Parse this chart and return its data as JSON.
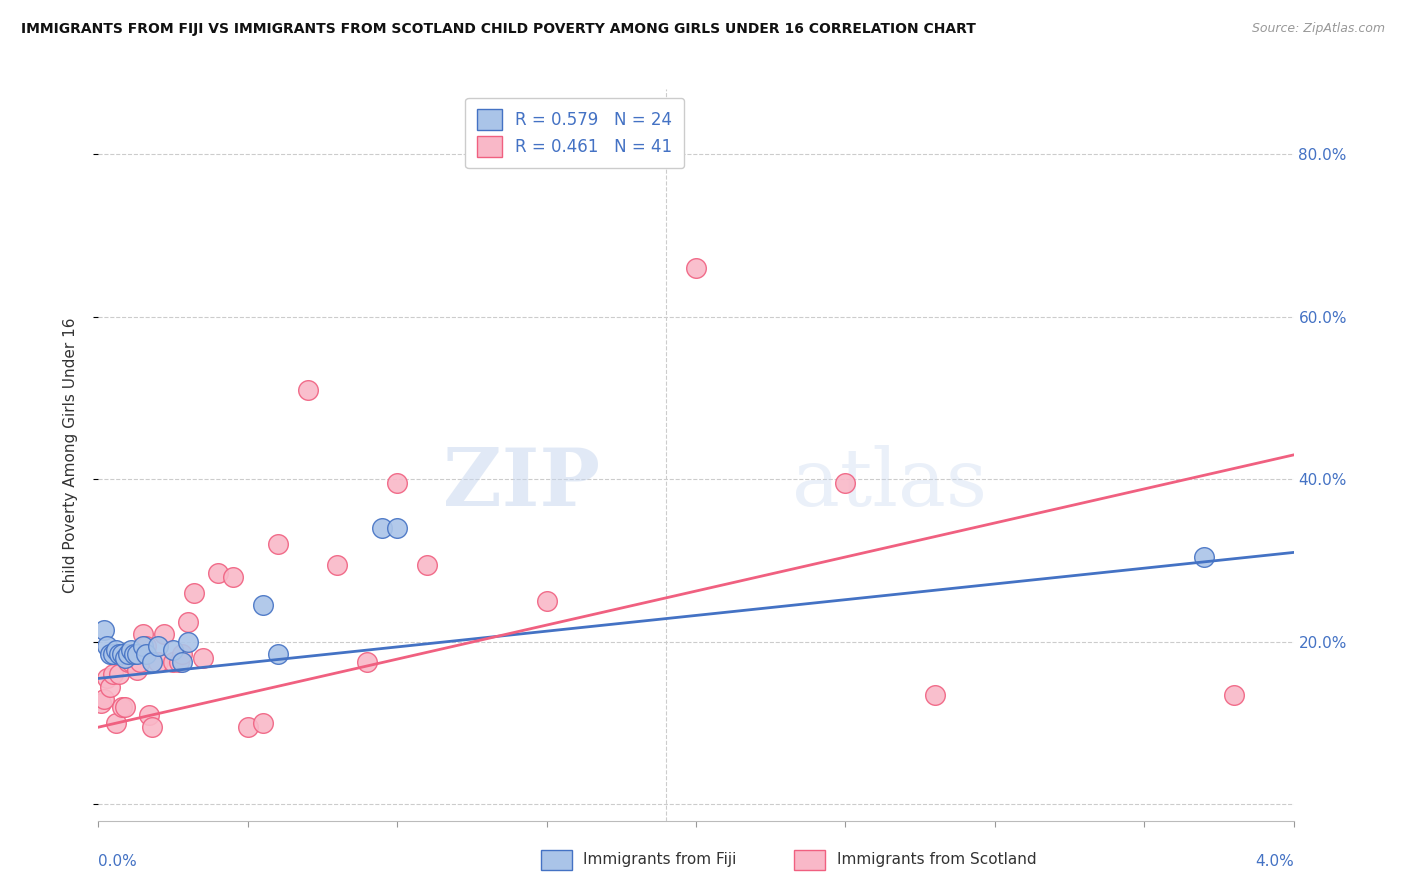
{
  "title": "IMMIGRANTS FROM FIJI VS IMMIGRANTS FROM SCOTLAND CHILD POVERTY AMONG GIRLS UNDER 16 CORRELATION CHART",
  "source": "Source: ZipAtlas.com",
  "ylabel": "Child Poverty Among Girls Under 16",
  "xlim": [
    0.0,
    0.04
  ],
  "ylim": [
    -0.02,
    0.88
  ],
  "yticks": [
    0.0,
    0.2,
    0.4,
    0.6,
    0.8
  ],
  "ytick_labels": [
    "",
    "20.0%",
    "40.0%",
    "60.0%",
    "80.0%"
  ],
  "background_color": "#ffffff",
  "watermark_zip": "ZIP",
  "watermark_atlas": "atlas",
  "fiji_color": "#aac4e8",
  "scotland_color": "#f9b8c8",
  "fiji_edge_color": "#4472c4",
  "scotland_edge_color": "#f06080",
  "fiji_line_color": "#4472c4",
  "scotland_line_color": "#f06080",
  "fiji_R": "0.579",
  "fiji_N": "24",
  "scotland_R": "0.461",
  "scotland_N": "41",
  "fiji_scatter_x": [
    0.0002,
    0.0003,
    0.0004,
    0.0005,
    0.0006,
    0.0007,
    0.0008,
    0.0009,
    0.001,
    0.0011,
    0.0012,
    0.0013,
    0.0015,
    0.0016,
    0.0018,
    0.002,
    0.0025,
    0.0028,
    0.003,
    0.0055,
    0.006,
    0.0095,
    0.01,
    0.037
  ],
  "fiji_scatter_y": [
    0.215,
    0.195,
    0.185,
    0.185,
    0.19,
    0.185,
    0.185,
    0.18,
    0.185,
    0.19,
    0.185,
    0.185,
    0.195,
    0.185,
    0.175,
    0.195,
    0.19,
    0.175,
    0.2,
    0.245,
    0.185,
    0.34,
    0.34,
    0.305
  ],
  "scotland_scatter_x": [
    0.0001,
    0.0002,
    0.0003,
    0.0004,
    0.0005,
    0.0006,
    0.0007,
    0.0008,
    0.0009,
    0.001,
    0.0011,
    0.0012,
    0.0013,
    0.0014,
    0.0015,
    0.0016,
    0.0017,
    0.0018,
    0.002,
    0.0022,
    0.0025,
    0.0027,
    0.0028,
    0.003,
    0.0032,
    0.0035,
    0.004,
    0.0045,
    0.005,
    0.0055,
    0.006,
    0.007,
    0.008,
    0.009,
    0.01,
    0.011,
    0.015,
    0.02,
    0.025,
    0.028,
    0.038
  ],
  "scotland_scatter_y": [
    0.125,
    0.13,
    0.155,
    0.145,
    0.16,
    0.1,
    0.16,
    0.12,
    0.12,
    0.175,
    0.175,
    0.185,
    0.165,
    0.175,
    0.21,
    0.195,
    0.11,
    0.095,
    0.175,
    0.21,
    0.175,
    0.175,
    0.185,
    0.225,
    0.26,
    0.18,
    0.285,
    0.28,
    0.095,
    0.1,
    0.32,
    0.51,
    0.295,
    0.175,
    0.395,
    0.295,
    0.25,
    0.66,
    0.395,
    0.135,
    0.135
  ],
  "fiji_line_x": [
    0.0,
    0.04
  ],
  "fiji_line_y": [
    0.155,
    0.31
  ],
  "scotland_line_x": [
    0.0,
    0.04
  ],
  "scotland_line_y": [
    0.095,
    0.43
  ],
  "vline_x": 0.019
}
